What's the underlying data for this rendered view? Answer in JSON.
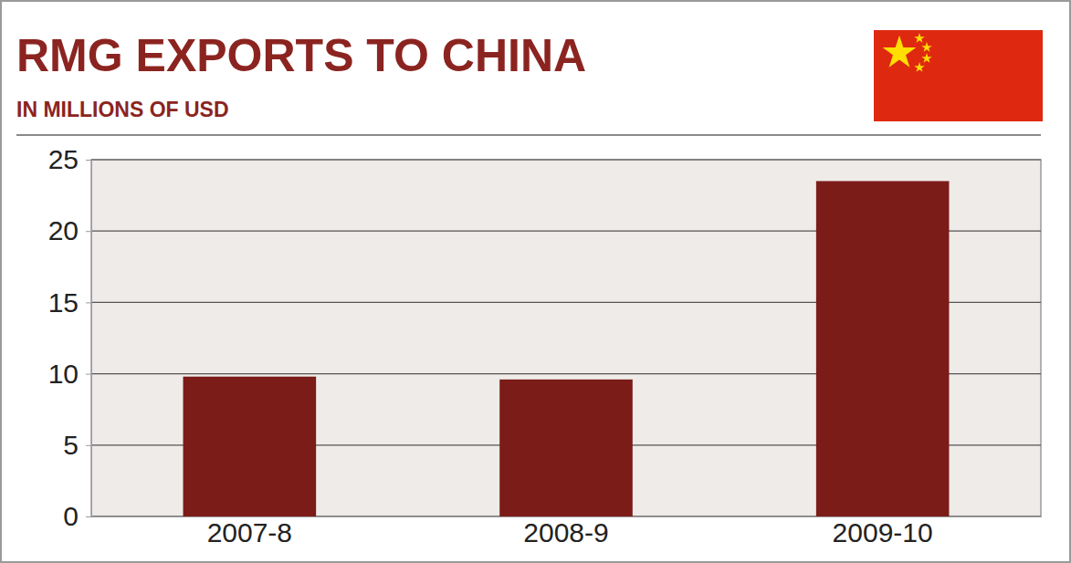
{
  "chart_data": {
    "type": "bar",
    "title": "RMG EXPORTS TO CHINA",
    "subtitle": "IN MILLIONS OF USD",
    "categories": [
      "2007-8",
      "2008-9",
      "2009-10"
    ],
    "values": [
      9.8,
      9.6,
      23.5
    ],
    "color": "#7b1c18",
    "ylim": [
      0,
      25
    ],
    "yticks": [
      0,
      5,
      10,
      15,
      20,
      25
    ],
    "grid": true
  }
}
